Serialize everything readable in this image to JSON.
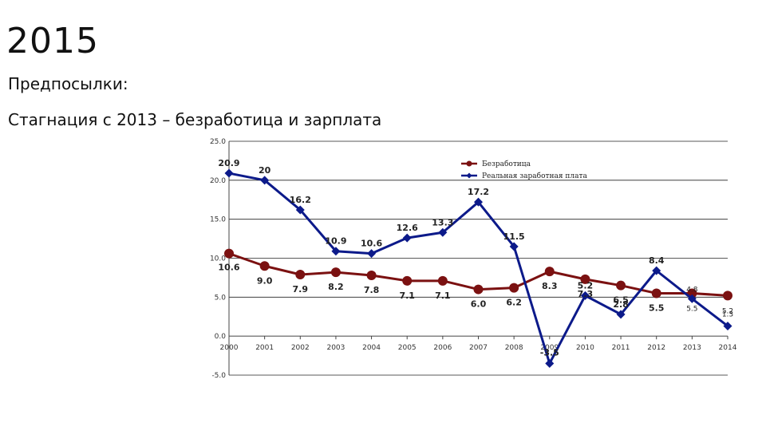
{
  "slide": {
    "title": "2015",
    "subtitle_1": "Предпосылки:",
    "subtitle_2": "Стагнация с 2013 – безработица и зарплата"
  },
  "chart_data": {
    "type": "line",
    "x": [
      2000,
      2001,
      2002,
      2003,
      2004,
      2005,
      2006,
      2007,
      2008,
      2009,
      2010,
      2011,
      2012,
      2013,
      2014
    ],
    "ylim": [
      -5,
      25
    ],
    "yticks": [
      "-5.0",
      "0.0",
      "5.0",
      "10.0",
      "15.0",
      "20.0",
      "25.0"
    ],
    "xticks": [
      "2000",
      "2001",
      "2002",
      "2003",
      "2004",
      "2005",
      "2006",
      "2007",
      "2008",
      "2009",
      "2010",
      "2011",
      "2012",
      "2013",
      "2014"
    ],
    "grid": true,
    "legend_position": "top-right",
    "series": [
      {
        "name": "Безработица",
        "color": "#7b1111",
        "marker": "circle",
        "values": [
          10.6,
          9.0,
          7.9,
          8.2,
          7.8,
          7.1,
          7.1,
          6.0,
          6.2,
          8.3,
          7.3,
          6.5,
          5.5,
          5.5,
          5.2
        ],
        "labels": [
          "10.6",
          "9.0",
          "7.9",
          "8.2",
          "7.8",
          "7.1",
          "7.1",
          "6.0",
          "6.2",
          "8.3",
          "7.3",
          "6.5",
          "5.5",
          "5.5",
          "5.2"
        ]
      },
      {
        "name": "Реальная заработная плата",
        "color": "#0c1a8a",
        "marker": "diamond",
        "values": [
          20.9,
          20.0,
          16.2,
          10.9,
          10.6,
          12.6,
          13.3,
          17.2,
          11.5,
          -3.5,
          5.2,
          2.8,
          8.4,
          4.8,
          1.3
        ],
        "labels": [
          "20.9",
          "20",
          "16.2",
          "10.9",
          "10.6",
          "12.6",
          "13.3",
          "17.2",
          "11.5",
          "-3.5",
          "5.2",
          "2.8",
          "8.4",
          "4.8",
          "1.3"
        ]
      }
    ]
  }
}
